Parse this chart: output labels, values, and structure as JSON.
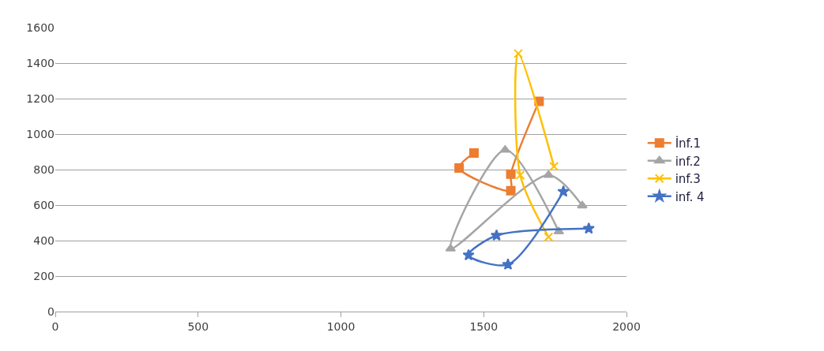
{
  "chart_data": {
    "type": "line",
    "xlim": [
      0,
      2000
    ],
    "xticks": [
      0,
      500,
      1000,
      1500,
      2000
    ],
    "ylim": [
      0,
      1600
    ],
    "yticks": [
      0,
      200,
      400,
      600,
      800,
      1000,
      1200,
      1400,
      1600
    ],
    "grid": "y",
    "legend": "right",
    "series": [
      {
        "name": "İnf.1",
        "color": "#ed7d31",
        "marker": "square",
        "x": [
          1466,
          1414,
          1595,
          1595,
          1694
        ],
        "values": [
          893,
          809,
          681,
          774,
          1185
        ]
      },
      {
        "name": "inf.2",
        "color": "#a5a5a5",
        "marker": "triangle",
        "x": [
          1763,
          1575,
          1384,
          1727,
          1845
        ],
        "values": [
          451,
          911,
          354,
          769,
          597
        ]
      },
      {
        "name": "inf.3",
        "color": "#ffc000",
        "marker": "cross",
        "x": [
          1746,
          1621,
          1628,
          1727
        ],
        "values": [
          818,
          1454,
          769,
          420
        ]
      },
      {
        "name": "inf. 4",
        "color": "#4472c4",
        "marker": "star",
        "x": [
          1868,
          1545,
          1447,
          1585,
          1779
        ],
        "values": [
          468,
          429,
          318,
          265,
          676
        ]
      }
    ]
  }
}
